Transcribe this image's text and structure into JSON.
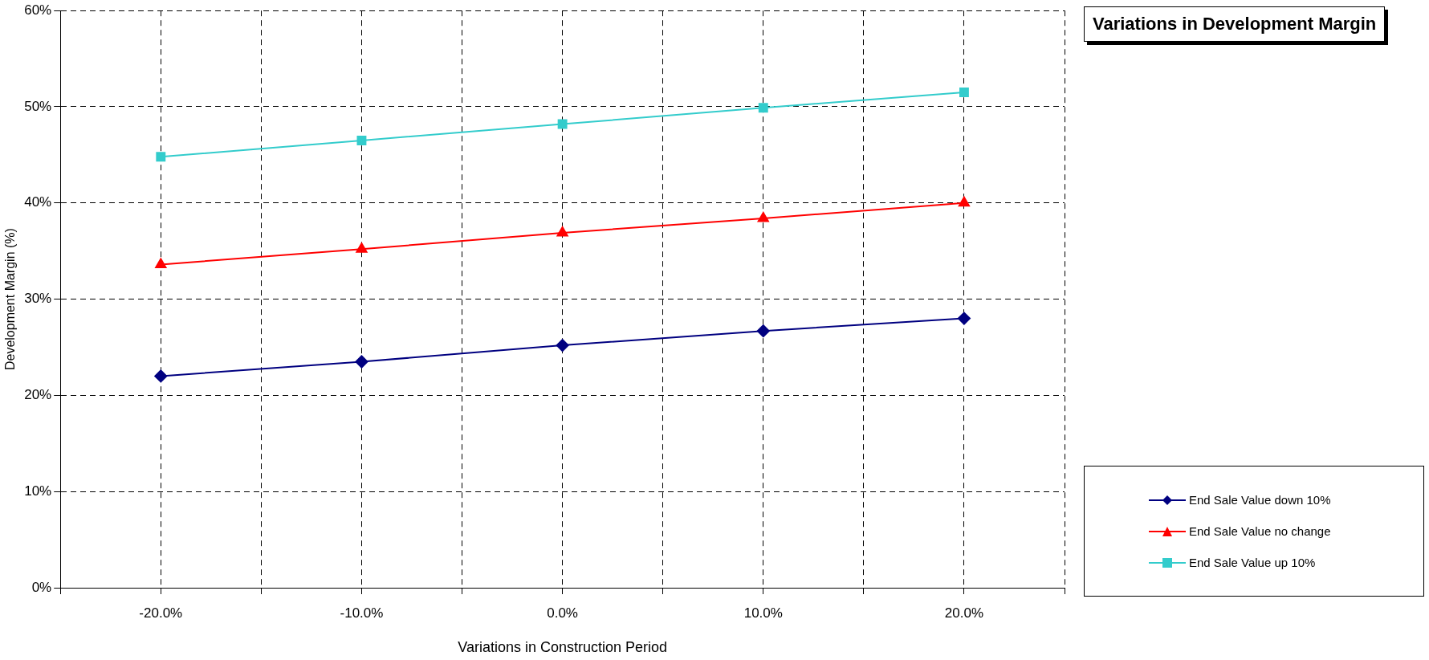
{
  "chart_data": {
    "type": "line",
    "title": "Variations in Development Margin",
    "xlabel": "Variations in Construction Period",
    "ylabel": "Development Margin (%)",
    "x": [
      -20,
      -10,
      0,
      10,
      20
    ],
    "xlim": [
      -25,
      25
    ],
    "xticks": [
      {
        "value": -25,
        "label": null
      },
      {
        "value": -20,
        "label": "-20.0%"
      },
      {
        "value": -15,
        "label": null
      },
      {
        "value": -10,
        "label": "-10.0%"
      },
      {
        "value": -5,
        "label": null
      },
      {
        "value": 0,
        "label": "0.0%"
      },
      {
        "value": 5,
        "label": null
      },
      {
        "value": 10,
        "label": "10.0%"
      },
      {
        "value": 15,
        "label": null
      },
      {
        "value": 20,
        "label": "20.0%"
      },
      {
        "value": 25,
        "label": null
      }
    ],
    "ylim": [
      0,
      60
    ],
    "yticks": [
      {
        "value": 0,
        "label": "0%"
      },
      {
        "value": 10,
        "label": "10%"
      },
      {
        "value": 20,
        "label": "20%"
      },
      {
        "value": 30,
        "label": "30%"
      },
      {
        "value": 40,
        "label": "40%"
      },
      {
        "value": 50,
        "label": "50%"
      },
      {
        "value": 60,
        "label": "60%"
      }
    ],
    "series": [
      {
        "name": "End Sale Value down 10%",
        "color": "#000080",
        "marker": "diamond",
        "values": [
          22.0,
          23.5,
          25.2,
          26.7,
          28.0
        ]
      },
      {
        "name": "End Sale Value no change",
        "color": "#ff0000",
        "marker": "triangle",
        "values": [
          33.6,
          35.2,
          36.9,
          38.4,
          40.0
        ]
      },
      {
        "name": "End Sale Value up 10%",
        "color": "#33cccc",
        "marker": "square",
        "values": [
          44.8,
          46.5,
          48.2,
          49.9,
          51.5
        ]
      }
    ],
    "grid": true,
    "legend": "bottom right",
    "line_style": "solid"
  }
}
